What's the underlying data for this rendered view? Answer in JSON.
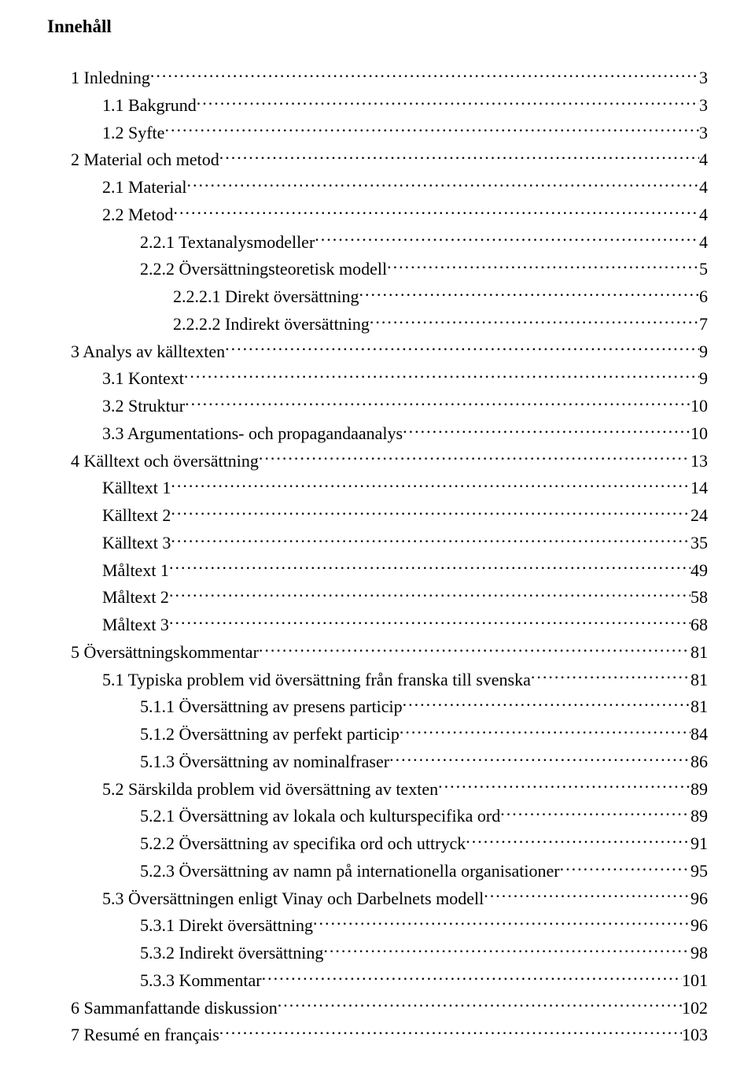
{
  "title": "Innehåll",
  "entries": [
    {
      "level": 0,
      "label": "1  Inledning",
      "page": "3"
    },
    {
      "level": 1,
      "label": "1.1 Bakgrund",
      "page": "3"
    },
    {
      "level": 1,
      "label": "1.2 Syfte",
      "page": "3"
    },
    {
      "level": 0,
      "label": "2  Material och metod",
      "page": "4"
    },
    {
      "level": 1,
      "label": "2.1 Material",
      "page": "4"
    },
    {
      "level": 1,
      "label": "2.2 Metod",
      "page": "4"
    },
    {
      "level": 2,
      "label": "2.2.1 Textanalysmodeller",
      "page": "4"
    },
    {
      "level": 2,
      "label": "2.2.2 Översättningsteoretisk modell",
      "page": "5"
    },
    {
      "level": 3,
      "label": "2.2.2.1 Direkt översättning",
      "page": "6"
    },
    {
      "level": 3,
      "label": "2.2.2.2 Indirekt översättning",
      "page": "7"
    },
    {
      "level": 0,
      "label": "3  Analys av källtexten",
      "page": "9"
    },
    {
      "level": 1,
      "label": "3.1 Kontext",
      "page": "9"
    },
    {
      "level": 1,
      "label": "3.2 Struktur",
      "page": "10"
    },
    {
      "level": 1,
      "label": "3.3 Argumentations- och propagandaanalys",
      "page": "10"
    },
    {
      "level": 0,
      "label": "4  Källtext och översättning",
      "page": "13"
    },
    {
      "level": 1,
      "label": "Källtext 1",
      "page": "14"
    },
    {
      "level": 1,
      "label": "Källtext 2",
      "page": "24"
    },
    {
      "level": 1,
      "label": "Källtext 3",
      "page": "35"
    },
    {
      "level": 1,
      "label": "Måltext 1",
      "page": "49"
    },
    {
      "level": 1,
      "label": "Måltext 2",
      "page": "58"
    },
    {
      "level": 1,
      "label": "Måltext 3",
      "page": "68"
    },
    {
      "level": 0,
      "label": "5  Översättningskommentar",
      "page": "81"
    },
    {
      "level": 1,
      "label": "5.1 Typiska problem vid översättning från franska till svenska",
      "page": "81"
    },
    {
      "level": 2,
      "label": "5.1.1 Översättning av presens particip",
      "page": "81"
    },
    {
      "level": 2,
      "label": "5.1.2 Översättning av perfekt particip",
      "page": "84"
    },
    {
      "level": 2,
      "label": "5.1.3 Översättning av nominalfraser",
      "page": "86"
    },
    {
      "level": 1,
      "label": "5.2 Särskilda problem vid översättning av texten",
      "page": "89"
    },
    {
      "level": 2,
      "label": "5.2.1 Översättning av lokala och kulturspecifika ord",
      "page": "89"
    },
    {
      "level": 2,
      "label": "5.2.2 Översättning av specifika ord och uttryck",
      "page": "91"
    },
    {
      "level": 2,
      "label": "5.2.3 Översättning av namn på internationella organisationer",
      "page": "95"
    },
    {
      "level": 1,
      "label": "5.3 Översättningen enligt Vinay och Darbelnets modell",
      "page": "96"
    },
    {
      "level": 2,
      "label": "5.3.1 Direkt översättning",
      "page": "96"
    },
    {
      "level": 2,
      "label": "5.3.2 Indirekt översättning",
      "page": "98"
    },
    {
      "level": 2,
      "label": "5.3.3 Kommentar",
      "page": "101"
    },
    {
      "level": 0,
      "label": "6   Sammanfattande diskussion",
      "page": "102"
    },
    {
      "level": 0,
      "label": "7  Resumé en français",
      "page": "103"
    }
  ]
}
